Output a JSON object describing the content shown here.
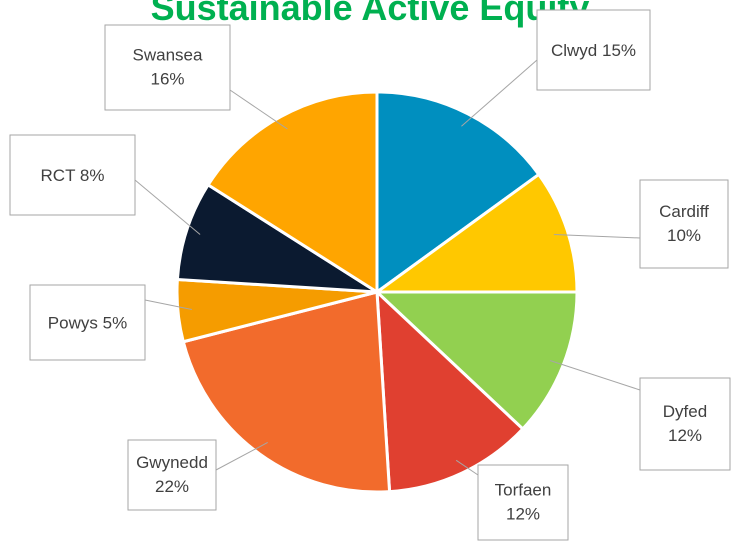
{
  "chart_data": {
    "type": "pie",
    "title": "Sustainable Active Equity",
    "categories": [
      "Clwyd",
      "Cardiff",
      "Dyfed",
      "Torfaen",
      "Gwynedd",
      "Powys",
      "RCT",
      "Swansea"
    ],
    "values": [
      15,
      10,
      12,
      12,
      22,
      5,
      8,
      16
    ],
    "value_labels": [
      "15%",
      "10%",
      "12%",
      "12%",
      "22%",
      "5%",
      "8%",
      "16%"
    ],
    "colors": [
      "#008fbf",
      "#ffc800",
      "#92d050",
      "#e04030",
      "#f26b2c",
      "#f59c00",
      "#0b1a30",
      "#ffa500"
    ]
  }
}
